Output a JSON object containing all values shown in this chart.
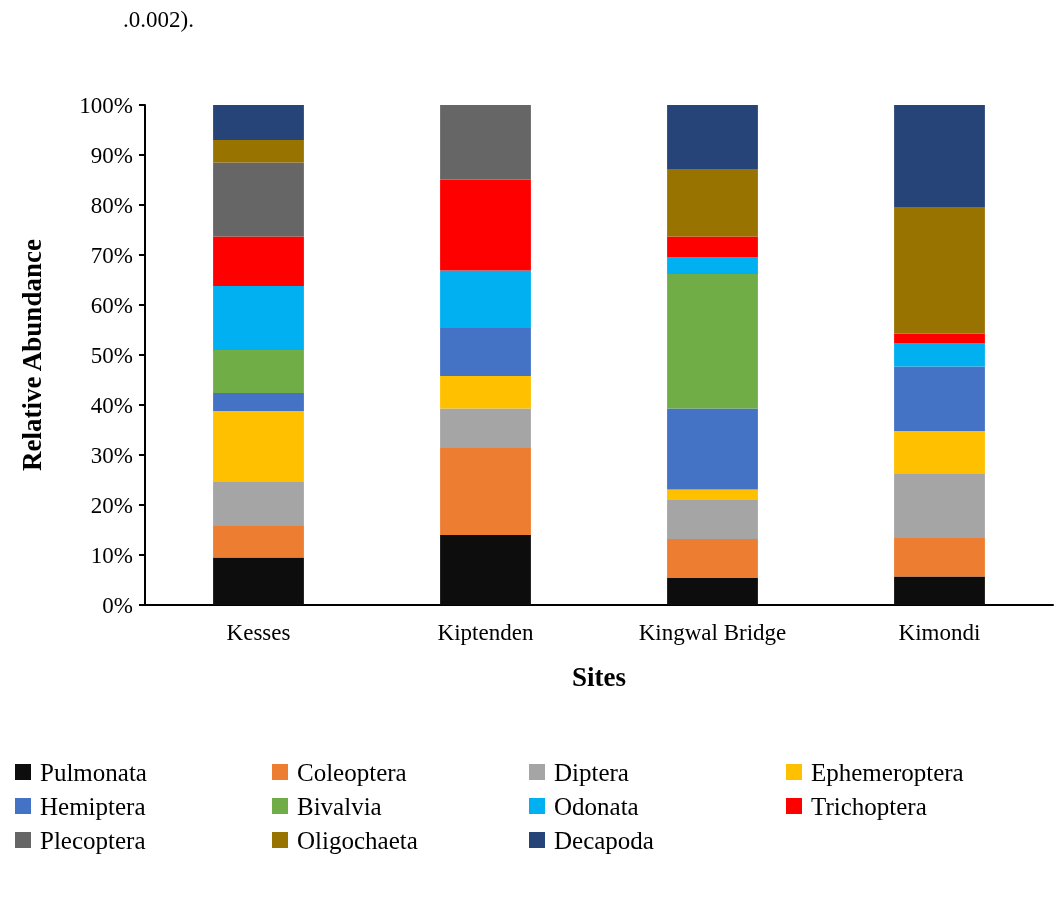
{
  "chart_data": {
    "type": "bar",
    "stacked": true,
    "xlabel": "Sites",
    "ylabel": "Relative Abundance",
    "annotations": [
      ".0.002)."
    ],
    "categories": [
      "Kesses",
      "Kiptenden",
      "Kingwal Bridge",
      "Kimondi"
    ],
    "series": [
      {
        "name": "Pulmonata",
        "color": "#0d0d0d",
        "values": [
          9.5,
          14.0,
          5.4,
          5.7
        ]
      },
      {
        "name": "Coleoptera",
        "color": "#ed7d31",
        "values": [
          6.3,
          17.4,
          7.8,
          7.7
        ]
      },
      {
        "name": "Diptera",
        "color": "#a5a5a5",
        "values": [
          8.8,
          7.9,
          7.8,
          12.8
        ]
      },
      {
        "name": "Ephemeroptera",
        "color": "#ffc000",
        "values": [
          14.2,
          6.5,
          2.1,
          8.6
        ]
      },
      {
        "name": "Hemiptera",
        "color": "#4472c4",
        "values": [
          3.6,
          9.6,
          16.2,
          12.9
        ]
      },
      {
        "name": "Bivalvia",
        "color": "#70ad47",
        "values": [
          8.6,
          0,
          26.9,
          0
        ]
      },
      {
        "name": "Odonata",
        "color": "#00b0f0",
        "values": [
          12.8,
          11.5,
          3.3,
          4.6
        ]
      },
      {
        "name": "Trichoptera",
        "color": "#ff0000",
        "values": [
          9.9,
          18.2,
          4.2,
          2.0
        ]
      },
      {
        "name": "Plecoptera",
        "color": "#666666",
        "values": [
          14.8,
          14.9,
          0,
          0
        ]
      },
      {
        "name": "Oligochaeta",
        "color": "#997300",
        "values": [
          4.5,
          0,
          13.5,
          25.3
        ]
      },
      {
        "name": "Decapoda",
        "color": "#264478",
        "values": [
          7.0,
          0,
          12.8,
          20.4
        ]
      }
    ],
    "ylim": [
      0,
      100
    ],
    "yticks": [
      {
        "value": 0,
        "label": "0%"
      },
      {
        "value": 10,
        "label": "10%"
      },
      {
        "value": 20,
        "label": "20%"
      },
      {
        "value": 30,
        "label": "30%"
      },
      {
        "value": 40,
        "label": "40%"
      },
      {
        "value": 50,
        "label": "50%"
      },
      {
        "value": 60,
        "label": "60%"
      },
      {
        "value": 70,
        "label": "70%"
      },
      {
        "value": 80,
        "label": "80%"
      },
      {
        "value": 90,
        "label": "90%"
      },
      {
        "value": 100,
        "label": "100%"
      }
    ],
    "grid": false,
    "legend": "bottom"
  }
}
